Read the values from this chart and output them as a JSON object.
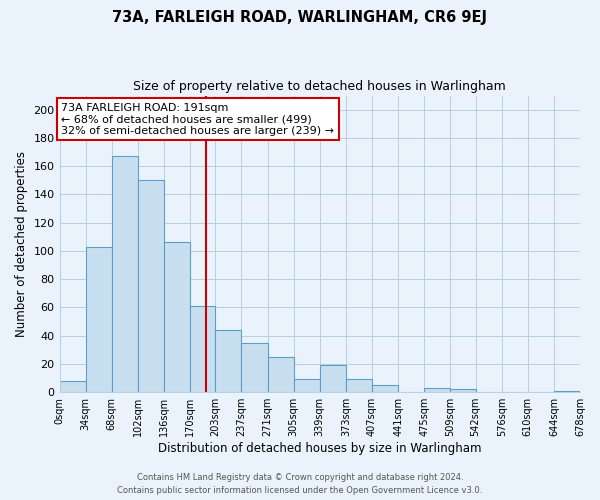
{
  "title": "73A, FARLEIGH ROAD, WARLINGHAM, CR6 9EJ",
  "subtitle": "Size of property relative to detached houses in Warlingham",
  "xlabel": "Distribution of detached houses by size in Warlingham",
  "ylabel": "Number of detached properties",
  "annotation_line1": "73A FARLEIGH ROAD: 191sqm",
  "annotation_line2": "← 68% of detached houses are smaller (499)",
  "annotation_line3": "32% of semi-detached houses are larger (239) →",
  "vline_x": 191,
  "bin_edges": [
    0,
    34,
    68,
    102,
    136,
    170,
    203,
    237,
    271,
    305,
    339,
    373,
    407,
    441,
    475,
    509,
    542,
    576,
    610,
    644,
    678
  ],
  "bin_counts": [
    8,
    103,
    167,
    150,
    106,
    61,
    44,
    35,
    25,
    9,
    19,
    9,
    5,
    0,
    3,
    2,
    0,
    0,
    0,
    1
  ],
  "bar_color": "#c8dff0",
  "bar_edge_color": "#5b9ec9",
  "vline_color": "#cc0000",
  "annotation_box_edge_color": "#cc0000",
  "annotation_box_face_color": "#ffffff",
  "footer_line1": "Contains HM Land Registry data © Crown copyright and database right 2024.",
  "footer_line2": "Contains public sector information licensed under the Open Government Licence v3.0.",
  "ylim": [
    0,
    210
  ],
  "yticks": [
    0,
    20,
    40,
    60,
    80,
    100,
    120,
    140,
    160,
    180,
    200
  ],
  "tick_labels": [
    "0sqm",
    "34sqm",
    "68sqm",
    "102sqm",
    "136sqm",
    "170sqm",
    "203sqm",
    "237sqm",
    "271sqm",
    "305sqm",
    "339sqm",
    "373sqm",
    "407sqm",
    "441sqm",
    "475sqm",
    "509sqm",
    "542sqm",
    "576sqm",
    "610sqm",
    "644sqm",
    "678sqm"
  ],
  "background_color": "#eaf3fb",
  "plot_bg_color": "#eaf3fb",
  "grid_color": "#b8cfe0",
  "title_fontsize": 10.5,
  "subtitle_fontsize": 9,
  "axis_label_fontsize": 8.5,
  "tick_fontsize": 7,
  "annotation_fontsize": 8,
  "footer_fontsize": 6
}
